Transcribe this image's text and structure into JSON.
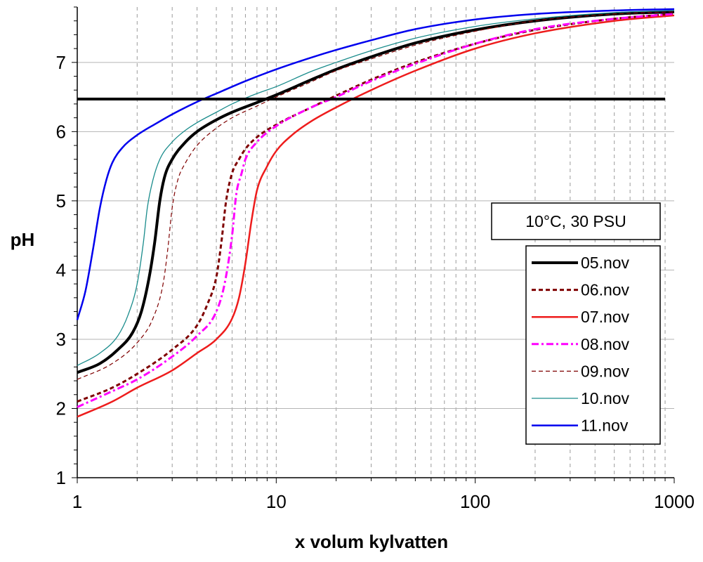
{
  "chart_data": {
    "type": "line",
    "title": "",
    "xlabel": "x volum kylvatten",
    "ylabel": "pH",
    "xscale": "log",
    "xlim": [
      1,
      1000
    ],
    "ylim": [
      1,
      7.8
    ],
    "x_ticks": [
      "1",
      "10",
      "100",
      "1000"
    ],
    "y_ticks": [
      "1",
      "2",
      "3",
      "4",
      "5",
      "6",
      "7"
    ],
    "grid": "vertical dashed at log minor steps, horizontal solid at integer pH",
    "legend_position": "bottom-right",
    "annotation": "10°C, 30 PSU",
    "reference_line": {
      "y": 6.47,
      "x_range": [
        1,
        900
      ],
      "color": "#000000"
    },
    "series": [
      {
        "name": "05.nov",
        "color": "#000000",
        "style": "solid-thick",
        "x": [
          1,
          1.3,
          1.6,
          1.9,
          2.1,
          2.3,
          2.45,
          2.6,
          2.75,
          3,
          3.5,
          4,
          5,
          6,
          8,
          10,
          15,
          20,
          30,
          50,
          100,
          200,
          500,
          1000
        ],
        "y": [
          2.52,
          2.65,
          2.85,
          3.1,
          3.4,
          3.9,
          4.4,
          5.0,
          5.35,
          5.6,
          5.85,
          6.0,
          6.17,
          6.28,
          6.42,
          6.53,
          6.75,
          6.9,
          7.08,
          7.28,
          7.47,
          7.6,
          7.7,
          7.73
        ]
      },
      {
        "name": "06.nov",
        "color": "#7f0000",
        "style": "dashed",
        "x": [
          1,
          1.5,
          2,
          3,
          4,
          4.5,
          5,
          5.3,
          5.6,
          6,
          6.5,
          7,
          8,
          10,
          15,
          20,
          30,
          50,
          100,
          200,
          500,
          1000
        ],
        "y": [
          2.1,
          2.3,
          2.5,
          2.85,
          3.2,
          3.5,
          3.9,
          4.4,
          5.0,
          5.4,
          5.6,
          5.75,
          5.92,
          6.1,
          6.35,
          6.52,
          6.75,
          7.0,
          7.27,
          7.47,
          7.63,
          7.7
        ]
      },
      {
        "name": "07.nov",
        "color": "#ee1c1c",
        "style": "solid",
        "x": [
          1,
          1.5,
          2,
          3,
          4,
          5,
          6,
          6.5,
          7,
          7.5,
          8,
          9,
          10,
          12,
          15,
          20,
          30,
          50,
          100,
          200,
          500,
          1000
        ],
        "y": [
          1.88,
          2.1,
          2.3,
          2.55,
          2.8,
          3.0,
          3.3,
          3.6,
          4.1,
          4.7,
          5.15,
          5.5,
          5.72,
          5.95,
          6.15,
          6.35,
          6.6,
          6.88,
          7.2,
          7.42,
          7.6,
          7.68
        ]
      },
      {
        "name": "08.nov",
        "color": "#ff00ff",
        "style": "dash-dot",
        "x": [
          1,
          1.5,
          2,
          3,
          4,
          5,
          5.5,
          6,
          6.3,
          6.7,
          7,
          8,
          10,
          15,
          20,
          30,
          50,
          100,
          200,
          500,
          1000
        ],
        "y": [
          2.02,
          2.25,
          2.42,
          2.75,
          3.05,
          3.4,
          3.8,
          4.5,
          5.1,
          5.4,
          5.6,
          5.85,
          6.08,
          6.35,
          6.5,
          6.73,
          6.98,
          7.27,
          7.48,
          7.63,
          7.7
        ]
      },
      {
        "name": "09.nov",
        "color": "#7f0000",
        "style": "thin-dashed",
        "x": [
          1,
          1.5,
          2,
          2.4,
          2.7,
          2.85,
          3,
          3.2,
          3.5,
          4,
          5,
          6,
          8,
          10,
          15,
          20,
          30,
          50,
          100,
          200,
          500,
          1000
        ],
        "y": [
          2.42,
          2.65,
          2.95,
          3.3,
          3.8,
          4.3,
          4.9,
          5.3,
          5.55,
          5.8,
          6.05,
          6.2,
          6.37,
          6.5,
          6.72,
          6.88,
          7.05,
          7.25,
          7.45,
          7.6,
          7.7,
          7.73
        ]
      },
      {
        "name": "10.nov",
        "color": "#1a8c8c",
        "style": "solid-thin",
        "x": [
          1,
          1.3,
          1.6,
          1.8,
          2,
          2.15,
          2.25,
          2.4,
          2.6,
          3,
          3.5,
          4,
          5,
          6,
          8,
          10,
          15,
          20,
          30,
          50,
          100,
          200,
          500,
          1000
        ],
        "y": [
          2.62,
          2.8,
          3.05,
          3.35,
          3.8,
          4.4,
          4.9,
          5.3,
          5.6,
          5.85,
          6.02,
          6.13,
          6.28,
          6.4,
          6.55,
          6.65,
          6.87,
          7.0,
          7.17,
          7.35,
          7.52,
          7.63,
          7.72,
          7.75
        ]
      },
      {
        "name": "11.nov",
        "color": "#0000ee",
        "style": "solid",
        "x": [
          1,
          1.1,
          1.2,
          1.3,
          1.4,
          1.5,
          1.7,
          2,
          2.5,
          3,
          4,
          5,
          7,
          10,
          15,
          20,
          30,
          50,
          100,
          200,
          500,
          1000
        ],
        "y": [
          3.28,
          3.7,
          4.3,
          4.9,
          5.3,
          5.55,
          5.78,
          5.95,
          6.12,
          6.25,
          6.43,
          6.55,
          6.73,
          6.9,
          7.07,
          7.18,
          7.32,
          7.48,
          7.62,
          7.7,
          7.75,
          7.77
        ]
      }
    ]
  }
}
